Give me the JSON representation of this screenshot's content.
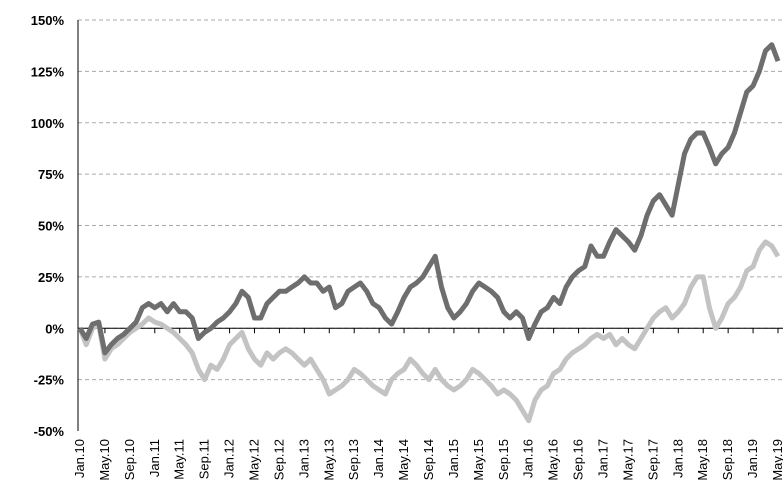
{
  "chart_data": {
    "type": "line",
    "categories": [
      "Jan.10",
      null,
      null,
      null,
      "May.10",
      null,
      null,
      null,
      "Sep.10",
      null,
      null,
      null,
      "Jan.11",
      null,
      null,
      null,
      "May.11",
      null,
      null,
      null,
      "Sep.11",
      null,
      null,
      null,
      "Jan.12",
      null,
      null,
      null,
      "May.12",
      null,
      null,
      null,
      "Sep.12",
      null,
      null,
      null,
      "Jan.13",
      null,
      null,
      null,
      "May.13",
      null,
      null,
      null,
      "Sep.13",
      null,
      null,
      null,
      "Jan.14",
      null,
      null,
      null,
      "May.14",
      null,
      null,
      null,
      "Sep.14",
      null,
      null,
      null,
      "Jan.15",
      null,
      null,
      null,
      "May.15",
      null,
      null,
      null,
      "Sep.15",
      null,
      null,
      null,
      "Jan.16",
      null,
      null,
      null,
      "May.16",
      null,
      null,
      null,
      "Sep.16",
      null,
      null,
      null,
      "Jan.17",
      null,
      null,
      null,
      "May.17",
      null,
      null,
      null,
      "Sep.17",
      null,
      null,
      null,
      "Jan.18",
      null,
      null,
      null,
      "May.18",
      null,
      null,
      null,
      "Sep.18",
      null,
      null,
      null,
      "Jan.19",
      null,
      null,
      null,
      "May.19"
    ],
    "series": [
      {
        "color": "#6e6e6e",
        "values": [
          0,
          -5,
          2,
          3,
          -12,
          -8,
          -5,
          -3,
          0,
          3,
          10,
          12,
          10,
          12,
          8,
          12,
          8,
          8,
          5,
          -5,
          -2,
          0,
          3,
          5,
          8,
          12,
          18,
          15,
          5,
          5,
          12,
          15,
          18,
          18,
          20,
          22,
          25,
          22,
          22,
          18,
          20,
          10,
          12,
          18,
          20,
          22,
          18,
          12,
          10,
          5,
          2,
          8,
          15,
          20,
          22,
          25,
          30,
          35,
          20,
          10,
          5,
          8,
          12,
          18,
          22,
          20,
          18,
          15,
          8,
          5,
          8,
          5,
          -5,
          2,
          8,
          10,
          15,
          12,
          20,
          25,
          28,
          30,
          40,
          35,
          35,
          42,
          48,
          45,
          42,
          38,
          45,
          55,
          62,
          65,
          60,
          55,
          70,
          85,
          92,
          95,
          95,
          88,
          80,
          85,
          88,
          95,
          105,
          115,
          118,
          125,
          135,
          138,
          130
        ]
      },
      {
        "color": "#c3c3c3",
        "values": [
          0,
          -8,
          0,
          2,
          -15,
          -10,
          -8,
          -5,
          -2,
          0,
          2,
          5,
          3,
          2,
          0,
          -2,
          -5,
          -8,
          -12,
          -20,
          -25,
          -18,
          -20,
          -15,
          -8,
          -5,
          -2,
          -10,
          -15,
          -18,
          -12,
          -15,
          -12,
          -10,
          -12,
          -15,
          -18,
          -15,
          -20,
          -25,
          -32,
          -30,
          -28,
          -25,
          -20,
          -22,
          -25,
          -28,
          -30,
          -32,
          -25,
          -22,
          -20,
          -15,
          -18,
          -22,
          -25,
          -20,
          -25,
          -28,
          -30,
          -28,
          -25,
          -20,
          -22,
          -25,
          -28,
          -32,
          -30,
          -32,
          -35,
          -40,
          -45,
          -35,
          -30,
          -28,
          -22,
          -20,
          -15,
          -12,
          -10,
          -8,
          -5,
          -3,
          -5,
          -3,
          -8,
          -5,
          -8,
          -10,
          -5,
          0,
          5,
          8,
          10,
          5,
          8,
          12,
          20,
          25,
          25,
          10,
          0,
          5,
          12,
          15,
          20,
          28,
          30,
          38,
          42,
          40,
          35
        ]
      }
    ],
    "ylim": [
      -50,
      150
    ],
    "yticks": [
      {
        "value": -50,
        "label": "-50%"
      },
      {
        "value": -25,
        "label": "-25%"
      },
      {
        "value": 0,
        "label": "0%"
      },
      {
        "value": 25,
        "label": "25%"
      },
      {
        "value": 50,
        "label": "50%"
      },
      {
        "value": 75,
        "label": "75%"
      },
      {
        "value": 100,
        "label": "100%"
      },
      {
        "value": 125,
        "label": "125%"
      },
      {
        "value": 150,
        "label": "150%"
      }
    ],
    "grid": true
  }
}
